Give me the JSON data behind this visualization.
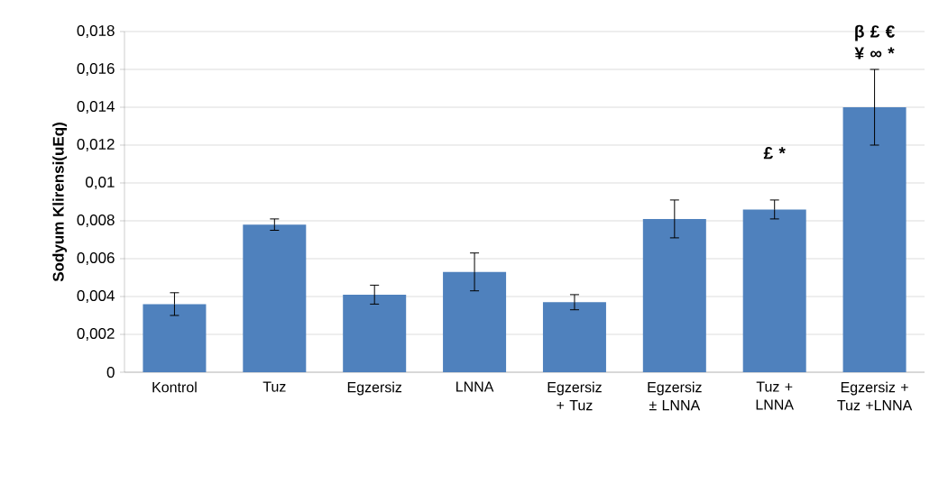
{
  "chart_data": {
    "type": "bar",
    "ylabel": "Sodyum Klirensi(uEq)",
    "categories": [
      "Kontrol",
      "Tuz",
      "Egzersiz",
      "LNNA",
      "Egzersiz + Tuz",
      "Egzersiz ± LNNA",
      "Tuz + LNNA",
      "Egzersiz + Tuz +LNNA"
    ],
    "values": [
      0.0036,
      0.0078,
      0.0041,
      0.0053,
      0.0037,
      0.0081,
      0.0086,
      0.014
    ],
    "errors": [
      0.0006,
      0.0003,
      0.0005,
      0.001,
      0.0004,
      0.001,
      0.0005,
      0.002
    ],
    "color": "#4f81bd",
    "ylim": [
      0,
      0.018
    ],
    "yticks": [
      0,
      {
        "value": 0.002,
        "label": "0,002"
      },
      {
        "value": 0.004,
        "label": "0,004"
      },
      {
        "value": 0.006,
        "label": "0,006"
      },
      {
        "value": 0.008,
        "label": "0,008"
      },
      {
        "value": 0.01,
        "label": "0,01"
      },
      {
        "value": 0.012,
        "label": "0,012"
      },
      {
        "value": 0.014,
        "label": "0,014"
      },
      {
        "value": 0.016,
        "label": "0,016"
      },
      {
        "value": 0.018,
        "label": "0,018"
      }
    ],
    "grid": "y",
    "annotations": [
      "£ *",
      "β £ € ¥ ∞ *"
    ]
  }
}
